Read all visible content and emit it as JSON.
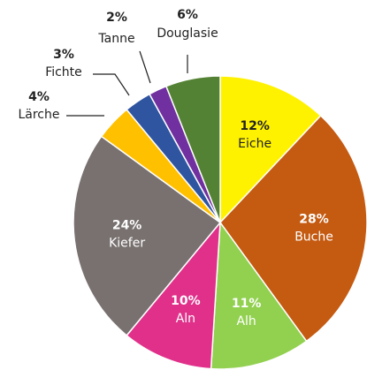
{
  "chart_data": {
    "type": "pie",
    "categories": [
      "Eiche",
      "Buche",
      "Alh",
      "Aln",
      "Kiefer",
      "Lärche",
      "Fichte",
      "Tanne",
      "Douglasie"
    ],
    "values": [
      12,
      28,
      11,
      10,
      24,
      4,
      3,
      2,
      6
    ],
    "value_labels": [
      "12%",
      "28%",
      "11%",
      "10%",
      "24%",
      "4%",
      "3%",
      "2%",
      "6%"
    ],
    "colors": [
      "#fff200",
      "#c55a11",
      "#92d050",
      "#e0308a",
      "#787170",
      "#ffc000",
      "#2f55a0",
      "#7030a0",
      "#548235"
    ]
  }
}
